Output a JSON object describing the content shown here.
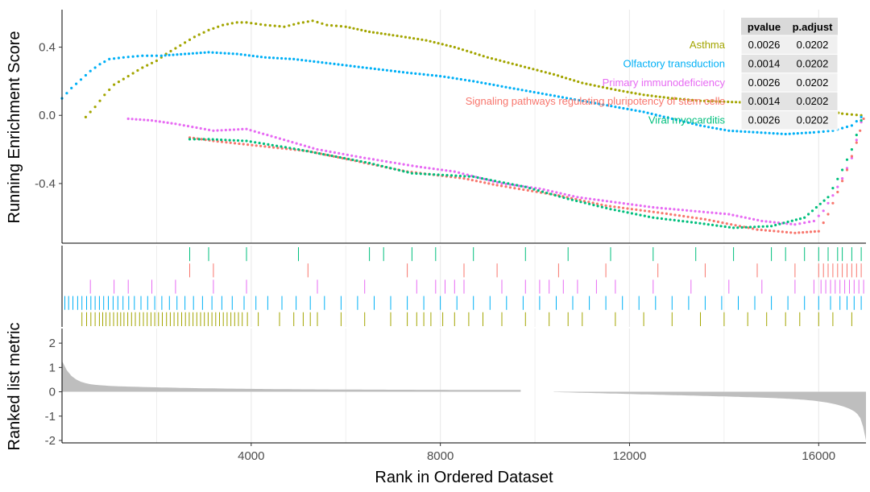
{
  "chart_data": {
    "type": "gsea-enrichment",
    "title": "",
    "xlabel": "Rank in Ordered Dataset",
    "xlim": [
      0,
      17000
    ],
    "xticks": [
      4000,
      8000,
      12000,
      16000
    ],
    "panels": {
      "enrichment": {
        "ylabel": "Running Enrichment Score",
        "ylim": [
          -0.75,
          0.62
        ],
        "yticks": [
          0.4,
          0.0,
          -0.4
        ],
        "ytick_labels": [
          "0.4",
          "0.0",
          "-0.4"
        ]
      },
      "hits": {
        "row_order": [
          "Viral myocarditis",
          "Signaling pathways regulating pluripotency of stem cells",
          "Primary immunodeficiency",
          "Olfactory transduction",
          "Asthma"
        ]
      },
      "metric": {
        "ylabel": "Ranked list metric",
        "ylim": [
          -2.1,
          2.6
        ],
        "yticks": [
          2,
          1,
          0,
          -1,
          -2
        ],
        "ytick_labels": [
          "2",
          "1",
          "0",
          "-1",
          "-2"
        ]
      }
    },
    "table": {
      "headers": [
        "pvalue",
        "p.adjust"
      ],
      "rows": [
        {
          "name": "Asthma",
          "pvalue": "0.0026",
          "padjust": "0.0202"
        },
        {
          "name": "Olfactory transduction",
          "pvalue": "0.0014",
          "padjust": "0.0202"
        },
        {
          "name": "Primary immunodeficiency",
          "pvalue": "0.0026",
          "padjust": "0.0202"
        },
        {
          "name": "Signaling pathways regulating pluripotency of stem cells",
          "pvalue": "0.0014",
          "padjust": "0.0202"
        },
        {
          "name": "Viral myocarditis",
          "pvalue": "0.0026",
          "padjust": "0.0202"
        }
      ]
    },
    "series": [
      {
        "name": "Asthma",
        "color": "#a3a500",
        "points": [
          [
            500,
            -0.01
          ],
          [
            700,
            0.05
          ],
          [
            900,
            0.12
          ],
          [
            1100,
            0.18
          ],
          [
            1400,
            0.23
          ],
          [
            1700,
            0.28
          ],
          [
            2000,
            0.32
          ],
          [
            2200,
            0.36
          ],
          [
            2500,
            0.41
          ],
          [
            2800,
            0.46
          ],
          [
            3100,
            0.5
          ],
          [
            3400,
            0.53
          ],
          [
            3700,
            0.545
          ],
          [
            3900,
            0.545
          ],
          [
            4300,
            0.53
          ],
          [
            4700,
            0.52
          ],
          [
            5000,
            0.54
          ],
          [
            5300,
            0.555
          ],
          [
            5600,
            0.53
          ],
          [
            6000,
            0.52
          ],
          [
            6500,
            0.49
          ],
          [
            7000,
            0.47
          ],
          [
            7700,
            0.44
          ],
          [
            8300,
            0.4
          ],
          [
            9000,
            0.34
          ],
          [
            9700,
            0.29
          ],
          [
            10400,
            0.24
          ],
          [
            11000,
            0.19
          ],
          [
            11700,
            0.15
          ],
          [
            12300,
            0.12
          ],
          [
            12900,
            0.1
          ],
          [
            13500,
            0.085
          ],
          [
            14000,
            0.08
          ],
          [
            14500,
            0.075
          ],
          [
            15000,
            0.07
          ],
          [
            15500,
            0.06
          ],
          [
            16000,
            0.04
          ],
          [
            16500,
            0.01
          ],
          [
            16900,
            0.0
          ]
        ],
        "hits": [
          420,
          520,
          610,
          700,
          790,
          860,
          930,
          1010,
          1090,
          1170,
          1240,
          1310,
          1390,
          1470,
          1550,
          1640,
          1720,
          1800,
          1880,
          1960,
          2040,
          2120,
          2210,
          2290,
          2370,
          2450,
          2530,
          2610,
          2690,
          2770,
          2850,
          2930,
          3010,
          3090,
          3170,
          3250,
          3330,
          3410,
          3490,
          3570,
          3650,
          3730,
          3810,
          3920,
          4150,
          4600,
          4900,
          5100,
          5250,
          5400,
          5900,
          6400,
          6950,
          7300,
          7500,
          7650,
          7800,
          8050,
          8300,
          8600,
          8900,
          9300,
          9800,
          10300,
          10700,
          11000,
          11700,
          12300,
          12900,
          13500,
          14000,
          14500,
          14900,
          15300,
          15600,
          16000,
          16300,
          16700
        ]
      },
      {
        "name": "Olfactory transduction",
        "color": "#00b0f6",
        "points": [
          [
            0,
            0.1
          ],
          [
            200,
            0.16
          ],
          [
            400,
            0.21
          ],
          [
            600,
            0.26
          ],
          [
            800,
            0.3
          ],
          [
            1000,
            0.33
          ],
          [
            1300,
            0.34
          ],
          [
            1700,
            0.35
          ],
          [
            2100,
            0.35
          ],
          [
            2600,
            0.36
          ],
          [
            3100,
            0.37
          ],
          [
            3700,
            0.36
          ],
          [
            4300,
            0.34
          ],
          [
            4900,
            0.33
          ],
          [
            5500,
            0.31
          ],
          [
            6100,
            0.29
          ],
          [
            6700,
            0.27
          ],
          [
            7300,
            0.25
          ],
          [
            8000,
            0.23
          ],
          [
            8700,
            0.2
          ],
          [
            9300,
            0.17
          ],
          [
            9900,
            0.14
          ],
          [
            10500,
            0.11
          ],
          [
            11100,
            0.08
          ],
          [
            11700,
            0.05
          ],
          [
            12300,
            0.02
          ],
          [
            12900,
            -0.02
          ],
          [
            13500,
            -0.06
          ],
          [
            14100,
            -0.09
          ],
          [
            14700,
            -0.1
          ],
          [
            15300,
            -0.11
          ],
          [
            15900,
            -0.1
          ],
          [
            16300,
            -0.09
          ],
          [
            16700,
            -0.06
          ],
          [
            16900,
            -0.01
          ]
        ],
        "hits": [
          60,
          140,
          230,
          330,
          420,
          520,
          610,
          700,
          790,
          880,
          980,
          1080,
          1180,
          1290,
          1410,
          1530,
          1670,
          1810,
          1960,
          2110,
          2270,
          2430,
          2600,
          2780,
          2970,
          3170,
          3380,
          3600,
          3850,
          4100,
          4350,
          4650,
          4950,
          5250,
          5550,
          5900,
          6250,
          6600,
          6950,
          7300,
          7650,
          8000,
          8350,
          8700,
          9050,
          9400,
          9750,
          10100,
          10450,
          10800,
          11150,
          11500,
          11850,
          12200,
          12550,
          12900,
          13250,
          13600,
          13950,
          14300,
          14650,
          15000,
          15350,
          15700,
          16000,
          16250,
          16450,
          16600,
          16750,
          16900
        ]
      },
      {
        "name": "Primary immunodeficiency",
        "color": "#e76bf3",
        "points": [
          [
            1400,
            -0.02
          ],
          [
            1900,
            -0.03
          ],
          [
            2400,
            -0.05
          ],
          [
            3200,
            -0.09
          ],
          [
            3900,
            -0.08
          ],
          [
            5400,
            -0.2
          ],
          [
            6400,
            -0.25
          ],
          [
            7500,
            -0.3
          ],
          [
            8300,
            -0.33
          ],
          [
            9300,
            -0.4
          ],
          [
            10100,
            -0.43
          ],
          [
            10900,
            -0.48
          ],
          [
            11700,
            -0.51
          ],
          [
            12500,
            -0.54
          ],
          [
            13300,
            -0.56
          ],
          [
            14100,
            -0.58
          ],
          [
            14800,
            -0.62
          ],
          [
            15500,
            -0.64
          ],
          [
            15900,
            -0.62
          ],
          [
            16100,
            -0.56
          ],
          [
            16300,
            -0.47
          ],
          [
            16500,
            -0.37
          ],
          [
            16700,
            -0.25
          ],
          [
            16900,
            -0.04
          ]
        ],
        "hits": [
          600,
          1100,
          1400,
          1900,
          2400,
          3200,
          3900,
          5400,
          6400,
          7500,
          7900,
          8100,
          8300,
          8500,
          9300,
          9800,
          10100,
          10300,
          10600,
          10900,
          11300,
          11700,
          12500,
          13300,
          14100,
          14800,
          15500,
          15900,
          16050,
          16150,
          16250,
          16350,
          16450,
          16550,
          16650,
          16750,
          16850,
          16950
        ]
      },
      {
        "name": "Signaling pathways regulating pluripotency of stem cells",
        "color": "#f8766d",
        "points": [
          [
            2700,
            -0.13
          ],
          [
            3200,
            -0.15
          ],
          [
            5200,
            -0.21
          ],
          [
            7300,
            -0.33
          ],
          [
            8500,
            -0.37
          ],
          [
            9200,
            -0.41
          ],
          [
            10500,
            -0.47
          ],
          [
            11500,
            -0.53
          ],
          [
            12600,
            -0.57
          ],
          [
            13600,
            -0.61
          ],
          [
            14700,
            -0.67
          ],
          [
            15500,
            -0.69
          ],
          [
            16000,
            -0.68
          ],
          [
            16200,
            -0.58
          ],
          [
            16400,
            -0.45
          ],
          [
            16600,
            -0.32
          ],
          [
            16800,
            -0.16
          ],
          [
            16950,
            -0.02
          ]
        ],
        "hits": [
          2700,
          3200,
          5200,
          7300,
          8500,
          9200,
          10500,
          11500,
          12600,
          13600,
          14700,
          15500,
          16000,
          16100,
          16200,
          16300,
          16400,
          16500,
          16600,
          16700,
          16800,
          16900
        ]
      },
      {
        "name": "Viral myocarditis",
        "color": "#00bf7d",
        "points": [
          [
            2700,
            -0.14
          ],
          [
            3100,
            -0.14
          ],
          [
            3900,
            -0.15
          ],
          [
            5000,
            -0.2
          ],
          [
            6500,
            -0.28
          ],
          [
            7400,
            -0.34
          ],
          [
            8700,
            -0.36
          ],
          [
            9800,
            -0.42
          ],
          [
            10700,
            -0.49
          ],
          [
            11600,
            -0.55
          ],
          [
            12500,
            -0.6
          ],
          [
            13400,
            -0.63
          ],
          [
            14200,
            -0.66
          ],
          [
            15000,
            -0.65
          ],
          [
            15700,
            -0.6
          ],
          [
            16200,
            -0.48
          ],
          [
            16500,
            -0.32
          ],
          [
            16700,
            -0.2
          ],
          [
            16900,
            -0.03
          ]
        ],
        "hits": [
          2700,
          3100,
          3900,
          5000,
          6500,
          6800,
          7400,
          7900,
          8700,
          9800,
          10700,
          11600,
          12500,
          13400,
          14200,
          15000,
          15300,
          15700,
          16000,
          16200,
          16400,
          16500,
          16700,
          16900
        ]
      }
    ]
  }
}
